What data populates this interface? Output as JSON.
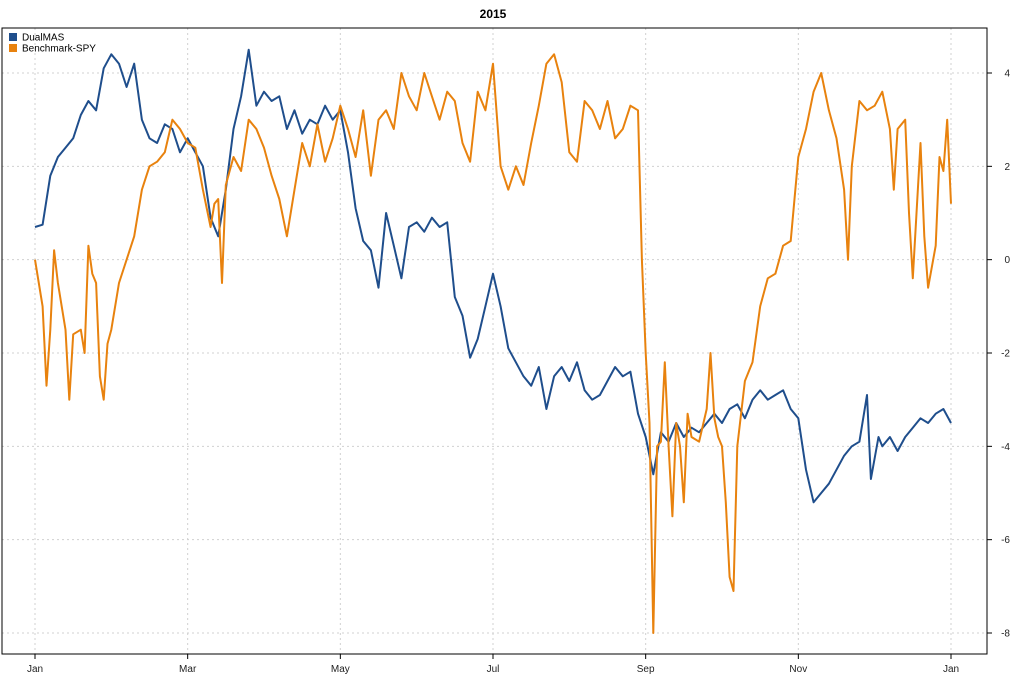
{
  "chart_data": {
    "type": "line",
    "title": "2015",
    "xlabel": "",
    "ylabel": "",
    "x_tick_labels": [
      "Jan",
      "Mar",
      "May",
      "Jul",
      "Sep",
      "Nov",
      "Jan"
    ],
    "x_tick_positions": [
      0,
      2,
      4,
      6,
      8,
      10,
      12
    ],
    "xlim": [
      0,
      12
    ],
    "y_ticks": [
      -8,
      -6,
      -4,
      -2,
      0,
      2,
      4
    ],
    "ylim": [
      -8.5,
      4.9
    ],
    "y_axis_side": "right",
    "grid": true,
    "legend_placement": "top-left",
    "series": [
      {
        "name": "DualMAS",
        "color": "#1f4e8c",
        "points": [
          [
            0.0,
            0.7
          ],
          [
            0.1,
            0.75
          ],
          [
            0.2,
            1.8
          ],
          [
            0.3,
            2.2
          ],
          [
            0.4,
            2.4
          ],
          [
            0.5,
            2.6
          ],
          [
            0.6,
            3.1
          ],
          [
            0.7,
            3.4
          ],
          [
            0.8,
            3.2
          ],
          [
            0.9,
            4.1
          ],
          [
            1.0,
            4.4
          ],
          [
            1.1,
            4.2
          ],
          [
            1.2,
            3.7
          ],
          [
            1.3,
            4.2
          ],
          [
            1.4,
            3.0
          ],
          [
            1.5,
            2.6
          ],
          [
            1.6,
            2.5
          ],
          [
            1.7,
            2.9
          ],
          [
            1.8,
            2.8
          ],
          [
            1.9,
            2.3
          ],
          [
            2.0,
            2.6
          ],
          [
            2.1,
            2.3
          ],
          [
            2.2,
            2.0
          ],
          [
            2.3,
            0.9
          ],
          [
            2.4,
            0.5
          ],
          [
            2.5,
            1.5
          ],
          [
            2.6,
            2.8
          ],
          [
            2.7,
            3.5
          ],
          [
            2.8,
            4.5
          ],
          [
            2.9,
            3.3
          ],
          [
            3.0,
            3.6
          ],
          [
            3.1,
            3.4
          ],
          [
            3.2,
            3.5
          ],
          [
            3.3,
            2.8
          ],
          [
            3.4,
            3.2
          ],
          [
            3.5,
            2.7
          ],
          [
            3.6,
            3.0
          ],
          [
            3.7,
            2.9
          ],
          [
            3.8,
            3.3
          ],
          [
            3.9,
            3.0
          ],
          [
            4.0,
            3.2
          ],
          [
            4.1,
            2.3
          ],
          [
            4.2,
            1.1
          ],
          [
            4.3,
            0.4
          ],
          [
            4.4,
            0.2
          ],
          [
            4.5,
            -0.6
          ],
          [
            4.6,
            1.0
          ],
          [
            4.7,
            0.3
          ],
          [
            4.8,
            -0.4
          ],
          [
            4.9,
            0.7
          ],
          [
            5.0,
            0.8
          ],
          [
            5.1,
            0.6
          ],
          [
            5.2,
            0.9
          ],
          [
            5.3,
            0.7
          ],
          [
            5.4,
            0.8
          ],
          [
            5.5,
            -0.8
          ],
          [
            5.6,
            -1.2
          ],
          [
            5.7,
            -2.1
          ],
          [
            5.8,
            -1.7
          ],
          [
            5.9,
            -1.0
          ],
          [
            6.0,
            -0.3
          ],
          [
            6.1,
            -1.0
          ],
          [
            6.2,
            -1.9
          ],
          [
            6.3,
            -2.2
          ],
          [
            6.4,
            -2.5
          ],
          [
            6.5,
            -2.7
          ],
          [
            6.6,
            -2.3
          ],
          [
            6.7,
            -3.2
          ],
          [
            6.8,
            -2.5
          ],
          [
            6.9,
            -2.3
          ],
          [
            7.0,
            -2.6
          ],
          [
            7.1,
            -2.2
          ],
          [
            7.2,
            -2.8
          ],
          [
            7.3,
            -3.0
          ],
          [
            7.4,
            -2.9
          ],
          [
            7.5,
            -2.6
          ],
          [
            7.6,
            -2.3
          ],
          [
            7.7,
            -2.5
          ],
          [
            7.8,
            -2.4
          ],
          [
            7.9,
            -3.3
          ],
          [
            8.0,
            -3.8
          ],
          [
            8.1,
            -4.6
          ],
          [
            8.2,
            -3.7
          ],
          [
            8.3,
            -3.9
          ],
          [
            8.4,
            -3.5
          ],
          [
            8.5,
            -3.8
          ],
          [
            8.6,
            -3.6
          ],
          [
            8.7,
            -3.7
          ],
          [
            8.8,
            -3.5
          ],
          [
            8.9,
            -3.3
          ],
          [
            9.0,
            -3.5
          ],
          [
            9.1,
            -3.2
          ],
          [
            9.2,
            -3.1
          ],
          [
            9.3,
            -3.4
          ],
          [
            9.4,
            -3.0
          ],
          [
            9.5,
            -2.8
          ],
          [
            9.6,
            -3.0
          ],
          [
            9.7,
            -2.9
          ],
          [
            9.8,
            -2.8
          ],
          [
            9.9,
            -3.2
          ],
          [
            10.0,
            -3.4
          ],
          [
            10.1,
            -4.5
          ],
          [
            10.2,
            -5.2
          ],
          [
            10.3,
            -5.0
          ],
          [
            10.4,
            -4.8
          ],
          [
            10.5,
            -4.5
          ],
          [
            10.6,
            -4.2
          ],
          [
            10.7,
            -4.0
          ],
          [
            10.8,
            -3.9
          ],
          [
            10.9,
            -2.9
          ],
          [
            10.95,
            -4.7
          ],
          [
            11.05,
            -3.8
          ],
          [
            11.1,
            -4.0
          ],
          [
            11.2,
            -3.8
          ],
          [
            11.3,
            -4.1
          ],
          [
            11.4,
            -3.8
          ],
          [
            11.5,
            -3.6
          ],
          [
            11.6,
            -3.4
          ],
          [
            11.7,
            -3.5
          ],
          [
            11.8,
            -3.3
          ],
          [
            11.9,
            -3.2
          ],
          [
            12.0,
            -3.5
          ]
        ]
      },
      {
        "name": "Benchmark-SPY",
        "color": "#e8820e",
        "points": [
          [
            0.0,
            0.0
          ],
          [
            0.1,
            -1.0
          ],
          [
            0.15,
            -2.7
          ],
          [
            0.2,
            -1.5
          ],
          [
            0.25,
            0.2
          ],
          [
            0.3,
            -0.5
          ],
          [
            0.4,
            -1.5
          ],
          [
            0.45,
            -3.0
          ],
          [
            0.5,
            -1.6
          ],
          [
            0.6,
            -1.5
          ],
          [
            0.65,
            -2.0
          ],
          [
            0.7,
            0.3
          ],
          [
            0.75,
            -0.3
          ],
          [
            0.8,
            -0.5
          ],
          [
            0.85,
            -2.5
          ],
          [
            0.9,
            -3.0
          ],
          [
            0.95,
            -1.8
          ],
          [
            1.0,
            -1.5
          ],
          [
            1.1,
            -0.5
          ],
          [
            1.2,
            0.0
          ],
          [
            1.3,
            0.5
          ],
          [
            1.4,
            1.5
          ],
          [
            1.5,
            2.0
          ],
          [
            1.6,
            2.1
          ],
          [
            1.7,
            2.3
          ],
          [
            1.8,
            3.0
          ],
          [
            1.9,
            2.8
          ],
          [
            2.0,
            2.5
          ],
          [
            2.1,
            2.4
          ],
          [
            2.2,
            1.5
          ],
          [
            2.3,
            0.7
          ],
          [
            2.35,
            1.2
          ],
          [
            2.4,
            1.3
          ],
          [
            2.45,
            -0.5
          ],
          [
            2.5,
            1.6
          ],
          [
            2.6,
            2.2
          ],
          [
            2.7,
            1.9
          ],
          [
            2.8,
            3.0
          ],
          [
            2.9,
            2.8
          ],
          [
            3.0,
            2.4
          ],
          [
            3.1,
            1.8
          ],
          [
            3.2,
            1.3
          ],
          [
            3.3,
            0.5
          ],
          [
            3.4,
            1.5
          ],
          [
            3.5,
            2.5
          ],
          [
            3.6,
            2.0
          ],
          [
            3.7,
            2.9
          ],
          [
            3.8,
            2.1
          ],
          [
            3.9,
            2.6
          ],
          [
            4.0,
            3.3
          ],
          [
            4.1,
            2.8
          ],
          [
            4.2,
            2.2
          ],
          [
            4.3,
            3.2
          ],
          [
            4.4,
            1.8
          ],
          [
            4.5,
            3.0
          ],
          [
            4.6,
            3.2
          ],
          [
            4.7,
            2.8
          ],
          [
            4.8,
            4.0
          ],
          [
            4.9,
            3.5
          ],
          [
            5.0,
            3.2
          ],
          [
            5.1,
            4.0
          ],
          [
            5.2,
            3.5
          ],
          [
            5.3,
            3.0
          ],
          [
            5.4,
            3.6
          ],
          [
            5.5,
            3.4
          ],
          [
            5.6,
            2.5
          ],
          [
            5.7,
            2.1
          ],
          [
            5.8,
            3.6
          ],
          [
            5.9,
            3.2
          ],
          [
            6.0,
            4.2
          ],
          [
            6.1,
            2.0
          ],
          [
            6.2,
            1.5
          ],
          [
            6.3,
            2.0
          ],
          [
            6.4,
            1.6
          ],
          [
            6.5,
            2.5
          ],
          [
            6.6,
            3.3
          ],
          [
            6.7,
            4.2
          ],
          [
            6.8,
            4.4
          ],
          [
            6.9,
            3.8
          ],
          [
            7.0,
            2.3
          ],
          [
            7.1,
            2.1
          ],
          [
            7.2,
            3.4
          ],
          [
            7.3,
            3.2
          ],
          [
            7.4,
            2.8
          ],
          [
            7.5,
            3.4
          ],
          [
            7.6,
            2.6
          ],
          [
            7.7,
            2.8
          ],
          [
            7.8,
            3.3
          ],
          [
            7.9,
            3.2
          ],
          [
            7.95,
            0.0
          ],
          [
            8.0,
            -2.0
          ],
          [
            8.05,
            -3.5
          ],
          [
            8.1,
            -8.0
          ],
          [
            8.15,
            -4.0
          ],
          [
            8.2,
            -3.9
          ],
          [
            8.25,
            -2.2
          ],
          [
            8.3,
            -4.0
          ],
          [
            8.35,
            -5.5
          ],
          [
            8.4,
            -3.5
          ],
          [
            8.45,
            -4.0
          ],
          [
            8.5,
            -5.2
          ],
          [
            8.55,
            -3.3
          ],
          [
            8.6,
            -3.8
          ],
          [
            8.7,
            -3.9
          ],
          [
            8.8,
            -3.2
          ],
          [
            8.85,
            -2.0
          ],
          [
            8.9,
            -3.4
          ],
          [
            8.95,
            -3.8
          ],
          [
            9.0,
            -4.0
          ],
          [
            9.05,
            -5.2
          ],
          [
            9.1,
            -6.8
          ],
          [
            9.15,
            -7.1
          ],
          [
            9.2,
            -4.0
          ],
          [
            9.3,
            -2.6
          ],
          [
            9.4,
            -2.2
          ],
          [
            9.5,
            -1.0
          ],
          [
            9.6,
            -0.4
          ],
          [
            9.7,
            -0.3
          ],
          [
            9.8,
            0.3
          ],
          [
            9.9,
            0.4
          ],
          [
            10.0,
            2.2
          ],
          [
            10.1,
            2.8
          ],
          [
            10.2,
            3.6
          ],
          [
            10.3,
            4.0
          ],
          [
            10.4,
            3.2
          ],
          [
            10.5,
            2.6
          ],
          [
            10.6,
            1.5
          ],
          [
            10.65,
            0.0
          ],
          [
            10.7,
            2.0
          ],
          [
            10.8,
            3.4
          ],
          [
            10.9,
            3.2
          ],
          [
            11.0,
            3.3
          ],
          [
            11.1,
            3.6
          ],
          [
            11.2,
            2.8
          ],
          [
            11.25,
            1.5
          ],
          [
            11.3,
            2.8
          ],
          [
            11.4,
            3.0
          ],
          [
            11.45,
            1.0
          ],
          [
            11.5,
            -0.4
          ],
          [
            11.6,
            2.5
          ],
          [
            11.65,
            0.5
          ],
          [
            11.7,
            -0.6
          ],
          [
            11.8,
            0.3
          ],
          [
            11.85,
            2.2
          ],
          [
            11.9,
            1.9
          ],
          [
            11.95,
            3.0
          ],
          [
            12.0,
            1.2
          ]
        ]
      }
    ]
  }
}
